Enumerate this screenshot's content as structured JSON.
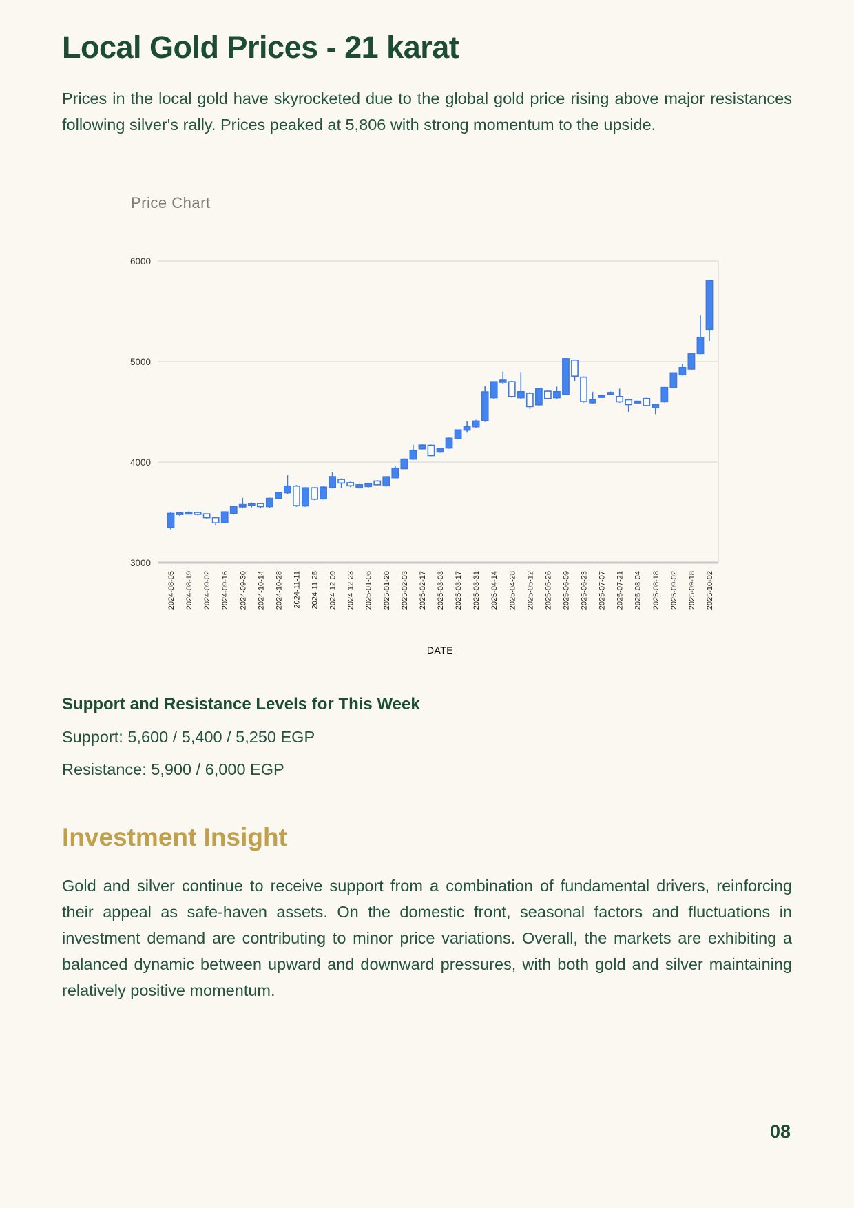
{
  "page": {
    "title": "Local Gold Prices - 21 karat",
    "intro": "Prices in the local gold have skyrocketed due to the global gold price rising above major resistances following silver's rally. Prices peaked at 5,806 with strong momentum to the upside.",
    "page_number": "08"
  },
  "support_resistance": {
    "heading": "Support and Resistance Levels for This Week",
    "support": "Support: 5,600 / 5,400 / 5,250 EGP",
    "resistance": "Resistance: 5,900 / 6,000 EGP"
  },
  "insight": {
    "heading": "Investment Insight",
    "body": "Gold and silver continue to receive support from a combination of fundamental drivers, reinforcing their appeal as safe-haven assets. On the domestic front, seasonal factors and fluctuations in investment demand are contributing to minor price variations. Overall, the markets are exhibiting a balanced dynamic between upward and downward pressures, with both gold and silver maintaining relatively positive momentum."
  },
  "colors": {
    "heading_green": "#1c4c36",
    "body_green": "#235240",
    "gold": "#c0a04a",
    "candle_blue_fill": "#4484ee",
    "candle_blue_stroke": "#3d78e3",
    "hollow_fill": "#fdfcf6",
    "grid": "#d9d9d9",
    "axis": "#c9c9c9",
    "chart_title_gray": "#7b7b7b",
    "tick_label": "#1a1a1a"
  },
  "chart_data": {
    "type": "candlestick",
    "title": "Price Chart",
    "xlabel": "DATE",
    "ylabel": "",
    "ylim": [
      3000,
      6000
    ],
    "yticks": [
      3000,
      4000,
      5000,
      6000
    ],
    "grid": true,
    "legend": "none",
    "peak_price": 5806,
    "x_tick_every": 2,
    "x_tick_labels": [
      "2024-08-05",
      "2024-08-19",
      "2024-09-02",
      "2024-09-16",
      "2024-09-30",
      "2024-10-14",
      "2024-10-28",
      "2024-11-11",
      "2024-11-25",
      "2024-12-09",
      "2024-12-23",
      "2025-01-06",
      "2025-01-20",
      "2025-02-03",
      "2025-02-17",
      "2025-03-03",
      "2025-03-17",
      "2025-03-31",
      "2025-04-14",
      "2025-04-28",
      "2025-05-12",
      "2025-05-26",
      "2025-06-09",
      "2025-06-23",
      "2025-07-07",
      "2025-07-21",
      "2025-08-04",
      "2025-08-18",
      "2025-09-02",
      "2025-09-18",
      "2025-10-02"
    ],
    "candles": {
      "columns": [
        "date",
        "open",
        "high",
        "low",
        "close"
      ],
      "rows": [
        [
          "2024-08-05",
          3350,
          3505,
          3330,
          3490
        ],
        [
          "2024-08-12",
          3480,
          3500,
          3465,
          3495
        ],
        [
          "2024-08-19",
          3490,
          3510,
          3480,
          3500
        ],
        [
          "2024-08-26",
          3500,
          3506,
          3470,
          3480
        ],
        [
          "2024-09-02",
          3485,
          3490,
          3438,
          3448
        ],
        [
          "2024-09-09",
          3448,
          3455,
          3368,
          3396
        ],
        [
          "2024-09-16",
          3400,
          3512,
          3390,
          3505
        ],
        [
          "2024-09-23",
          3488,
          3568,
          3478,
          3560
        ],
        [
          "2024-09-30",
          3555,
          3645,
          3540,
          3578
        ],
        [
          "2024-10-07",
          3575,
          3598,
          3550,
          3588
        ],
        [
          "2024-10-14",
          3588,
          3596,
          3540,
          3558
        ],
        [
          "2024-10-21",
          3558,
          3648,
          3548,
          3640
        ],
        [
          "2024-10-28",
          3640,
          3705,
          3630,
          3695
        ],
        [
          "2024-11-04",
          3695,
          3870,
          3685,
          3762
        ],
        [
          "2024-11-11",
          3762,
          3772,
          3556,
          3568
        ],
        [
          "2024-11-18",
          3565,
          3752,
          3555,
          3745
        ],
        [
          "2024-11-25",
          3745,
          3752,
          3622,
          3632
        ],
        [
          "2024-12-02",
          3635,
          3760,
          3628,
          3752
        ],
        [
          "2024-12-09",
          3750,
          3897,
          3738,
          3856
        ],
        [
          "2024-12-16",
          3828,
          3838,
          3742,
          3792
        ],
        [
          "2024-12-23",
          3795,
          3805,
          3752,
          3765
        ],
        [
          "2024-12-30",
          3745,
          3782,
          3738,
          3775
        ],
        [
          "2025-01-06",
          3758,
          3795,
          3748,
          3788
        ],
        [
          "2025-01-13",
          3812,
          3822,
          3762,
          3775
        ],
        [
          "2025-01-20",
          3765,
          3862,
          3758,
          3855
        ],
        [
          "2025-01-27",
          3845,
          3962,
          3838,
          3940
        ],
        [
          "2025-02-03",
          3935,
          4038,
          3928,
          4030
        ],
        [
          "2025-02-10",
          4030,
          4172,
          4022,
          4115
        ],
        [
          "2025-02-17",
          4132,
          4178,
          4125,
          4170
        ],
        [
          "2025-02-24",
          4168,
          4175,
          4058,
          4065
        ],
        [
          "2025-03-03",
          4100,
          4140,
          4092,
          4135
        ],
        [
          "2025-03-10",
          4140,
          4245,
          4132,
          4238
        ],
        [
          "2025-03-17",
          4235,
          4325,
          4228,
          4320
        ],
        [
          "2025-03-24",
          4318,
          4405,
          4300,
          4352
        ],
        [
          "2025-03-31",
          4352,
          4420,
          4340,
          4408
        ],
        [
          "2025-04-07",
          4412,
          4755,
          4400,
          4698
        ],
        [
          "2025-04-14",
          4640,
          4805,
          4630,
          4800
        ],
        [
          "2025-04-21",
          4795,
          4900,
          4780,
          4815
        ],
        [
          "2025-04-28",
          4800,
          4810,
          4640,
          4652
        ],
        [
          "2025-05-05",
          4640,
          4895,
          4628,
          4700
        ],
        [
          "2025-05-12",
          4685,
          4695,
          4528,
          4552
        ],
        [
          "2025-05-19",
          4570,
          4738,
          4560,
          4730
        ],
        [
          "2025-05-26",
          4705,
          4712,
          4622,
          4632
        ],
        [
          "2025-06-02",
          4640,
          4750,
          4630,
          4700
        ],
        [
          "2025-06-09",
          4675,
          5035,
          4665,
          5028
        ],
        [
          "2025-06-16",
          5015,
          5022,
          4808,
          4855
        ],
        [
          "2025-06-23",
          4845,
          4852,
          4592,
          4602
        ],
        [
          "2025-06-30",
          4590,
          4700,
          4582,
          4622
        ],
        [
          "2025-07-07",
          4648,
          4668,
          4638,
          4660
        ],
        [
          "2025-07-14",
          4682,
          4702,
          4672,
          4692
        ],
        [
          "2025-07-21",
          4652,
          4730,
          4590,
          4600
        ],
        [
          "2025-07-28",
          4620,
          4628,
          4500,
          4572
        ],
        [
          "2025-08-04",
          4595,
          4612,
          4585,
          4605
        ],
        [
          "2025-08-11",
          4632,
          4640,
          4555,
          4562
        ],
        [
          "2025-08-18",
          4540,
          4580,
          4478,
          4572
        ],
        [
          "2025-08-25",
          4600,
          4748,
          4592,
          4742
        ],
        [
          "2025-09-02",
          4740,
          4892,
          4732,
          4888
        ],
        [
          "2025-09-09",
          4868,
          4980,
          4860,
          4940
        ],
        [
          "2025-09-18",
          4925,
          5085,
          4918,
          5080
        ],
        [
          "2025-09-25",
          5080,
          5458,
          5072,
          5240
        ],
        [
          "2025-10-02",
          5320,
          5806,
          5205,
          5806
        ]
      ]
    }
  }
}
